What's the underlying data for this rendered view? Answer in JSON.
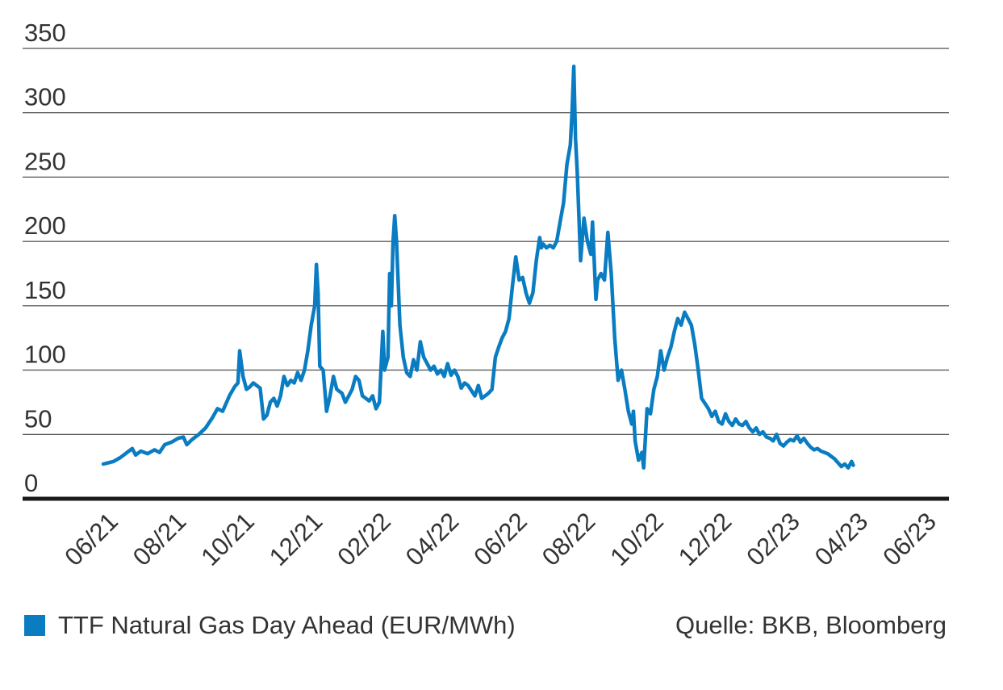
{
  "chart_data": {
    "type": "line",
    "title": "",
    "xlabel": "",
    "ylabel": "",
    "ylim": [
      0,
      350
    ],
    "yticks": [
      0,
      50,
      100,
      150,
      200,
      250,
      300,
      350
    ],
    "grid": true,
    "x_tick_labels": [
      "06/21",
      "08/21",
      "10/21",
      "12/21",
      "02/22",
      "04/22",
      "06/22",
      "08/22",
      "10/22",
      "12/22",
      "02/23",
      "04/23",
      "06/23"
    ],
    "x_unit": "months since 06/21",
    "color": "#0a7cc1",
    "series": [
      {
        "name": "TTF Natural Gas Day Ahead (EUR/MWh)",
        "points": [
          [
            0.0,
            27
          ],
          [
            0.15,
            28
          ],
          [
            0.3,
            29
          ],
          [
            0.5,
            32
          ],
          [
            0.7,
            36
          ],
          [
            0.85,
            39
          ],
          [
            0.95,
            34
          ],
          [
            1.1,
            37
          ],
          [
            1.3,
            35
          ],
          [
            1.5,
            38
          ],
          [
            1.65,
            36
          ],
          [
            1.8,
            42
          ],
          [
            2.0,
            44
          ],
          [
            2.2,
            47
          ],
          [
            2.35,
            48
          ],
          [
            2.45,
            42
          ],
          [
            2.6,
            46
          ],
          [
            2.8,
            50
          ],
          [
            3.0,
            55
          ],
          [
            3.2,
            63
          ],
          [
            3.35,
            70
          ],
          [
            3.5,
            68
          ],
          [
            3.7,
            80
          ],
          [
            3.85,
            87
          ],
          [
            3.95,
            90
          ],
          [
            4.0,
            115
          ],
          [
            4.1,
            95
          ],
          [
            4.2,
            85
          ],
          [
            4.3,
            87
          ],
          [
            4.4,
            90
          ],
          [
            4.5,
            88
          ],
          [
            4.6,
            86
          ],
          [
            4.7,
            62
          ],
          [
            4.8,
            65
          ],
          [
            4.9,
            75
          ],
          [
            5.0,
            78
          ],
          [
            5.1,
            72
          ],
          [
            5.2,
            80
          ],
          [
            5.3,
            95
          ],
          [
            5.4,
            88
          ],
          [
            5.5,
            92
          ],
          [
            5.6,
            90
          ],
          [
            5.7,
            98
          ],
          [
            5.8,
            92
          ],
          [
            5.9,
            100
          ],
          [
            6.0,
            115
          ],
          [
            6.1,
            135
          ],
          [
            6.2,
            150
          ],
          [
            6.25,
            182
          ],
          [
            6.3,
            160
          ],
          [
            6.35,
            103
          ],
          [
            6.45,
            100
          ],
          [
            6.55,
            68
          ],
          [
            6.65,
            80
          ],
          [
            6.75,
            95
          ],
          [
            6.85,
            85
          ],
          [
            7.0,
            82
          ],
          [
            7.1,
            75
          ],
          [
            7.2,
            80
          ],
          [
            7.3,
            85
          ],
          [
            7.4,
            95
          ],
          [
            7.5,
            92
          ],
          [
            7.6,
            80
          ],
          [
            7.7,
            78
          ],
          [
            7.8,
            76
          ],
          [
            7.9,
            80
          ],
          [
            8.0,
            70
          ],
          [
            8.1,
            75
          ],
          [
            8.2,
            130
          ],
          [
            8.25,
            100
          ],
          [
            8.35,
            110
          ],
          [
            8.4,
            175
          ],
          [
            8.45,
            150
          ],
          [
            8.5,
            200
          ],
          [
            8.55,
            220
          ],
          [
            8.6,
            200
          ],
          [
            8.7,
            135
          ],
          [
            8.8,
            110
          ],
          [
            8.9,
            98
          ],
          [
            9.0,
            95
          ],
          [
            9.1,
            108
          ],
          [
            9.2,
            100
          ],
          [
            9.3,
            122
          ],
          [
            9.4,
            110
          ],
          [
            9.5,
            105
          ],
          [
            9.6,
            100
          ],
          [
            9.7,
            103
          ],
          [
            9.8,
            97
          ],
          [
            9.9,
            100
          ],
          [
            10.0,
            95
          ],
          [
            10.1,
            105
          ],
          [
            10.2,
            96
          ],
          [
            10.3,
            100
          ],
          [
            10.4,
            95
          ],
          [
            10.5,
            86
          ],
          [
            10.6,
            90
          ],
          [
            10.7,
            88
          ],
          [
            10.8,
            84
          ],
          [
            10.9,
            80
          ],
          [
            11.0,
            88
          ],
          [
            11.1,
            78
          ],
          [
            11.2,
            80
          ],
          [
            11.3,
            82
          ],
          [
            11.4,
            85
          ],
          [
            11.5,
            110
          ],
          [
            11.6,
            118
          ],
          [
            11.7,
            125
          ],
          [
            11.8,
            130
          ],
          [
            11.9,
            140
          ],
          [
            12.0,
            165
          ],
          [
            12.1,
            188
          ],
          [
            12.2,
            170
          ],
          [
            12.3,
            172
          ],
          [
            12.4,
            160
          ],
          [
            12.5,
            152
          ],
          [
            12.6,
            160
          ],
          [
            12.7,
            185
          ],
          [
            12.8,
            203
          ],
          [
            12.85,
            195
          ],
          [
            12.9,
            198
          ],
          [
            13.0,
            195
          ],
          [
            13.1,
            197
          ],
          [
            13.2,
            195
          ],
          [
            13.3,
            200
          ],
          [
            13.4,
            215
          ],
          [
            13.5,
            230
          ],
          [
            13.6,
            260
          ],
          [
            13.7,
            275
          ],
          [
            13.75,
            300
          ],
          [
            13.8,
            336
          ],
          [
            13.85,
            280
          ],
          [
            13.9,
            255
          ],
          [
            14.0,
            185
          ],
          [
            14.1,
            218
          ],
          [
            14.2,
            200
          ],
          [
            14.3,
            190
          ],
          [
            14.35,
            215
          ],
          [
            14.45,
            155
          ],
          [
            14.5,
            170
          ],
          [
            14.6,
            175
          ],
          [
            14.7,
            170
          ],
          [
            14.8,
            207
          ],
          [
            14.9,
            175
          ],
          [
            15.0,
            125
          ],
          [
            15.1,
            92
          ],
          [
            15.2,
            100
          ],
          [
            15.3,
            85
          ],
          [
            15.4,
            68
          ],
          [
            15.5,
            58
          ],
          [
            15.55,
            68
          ],
          [
            15.6,
            45
          ],
          [
            15.7,
            30
          ],
          [
            15.8,
            36
          ],
          [
            15.85,
            24
          ],
          [
            15.95,
            70
          ],
          [
            16.05,
            66
          ],
          [
            16.15,
            85
          ],
          [
            16.25,
            95
          ],
          [
            16.35,
            115
          ],
          [
            16.45,
            100
          ],
          [
            16.55,
            110
          ],
          [
            16.65,
            118
          ],
          [
            16.75,
            130
          ],
          [
            16.85,
            140
          ],
          [
            16.95,
            135
          ],
          [
            17.05,
            145
          ],
          [
            17.15,
            140
          ],
          [
            17.25,
            135
          ],
          [
            17.35,
            120
          ],
          [
            17.45,
            100
          ],
          [
            17.55,
            78
          ],
          [
            17.65,
            74
          ],
          [
            17.75,
            70
          ],
          [
            17.85,
            64
          ],
          [
            17.95,
            68
          ],
          [
            18.05,
            60
          ],
          [
            18.15,
            58
          ],
          [
            18.25,
            66
          ],
          [
            18.35,
            60
          ],
          [
            18.45,
            57
          ],
          [
            18.55,
            62
          ],
          [
            18.65,
            58
          ],
          [
            18.75,
            57
          ],
          [
            18.85,
            60
          ],
          [
            18.95,
            55
          ],
          [
            19.05,
            52
          ],
          [
            19.15,
            55
          ],
          [
            19.25,
            50
          ],
          [
            19.35,
            52
          ],
          [
            19.45,
            48
          ],
          [
            19.55,
            47
          ],
          [
            19.65,
            45
          ],
          [
            19.75,
            50
          ],
          [
            19.85,
            43
          ],
          [
            19.95,
            41
          ],
          [
            20.05,
            44
          ],
          [
            20.15,
            46
          ],
          [
            20.25,
            45
          ],
          [
            20.35,
            49
          ],
          [
            20.45,
            44
          ],
          [
            20.55,
            47
          ],
          [
            20.65,
            43
          ],
          [
            20.75,
            40
          ],
          [
            20.85,
            38
          ],
          [
            20.95,
            39
          ],
          [
            21.05,
            37
          ],
          [
            21.15,
            36
          ],
          [
            21.25,
            35
          ],
          [
            21.35,
            33
          ],
          [
            21.45,
            31
          ],
          [
            21.55,
            28
          ],
          [
            21.65,
            25
          ],
          [
            21.75,
            27
          ],
          [
            21.85,
            24
          ],
          [
            21.95,
            29
          ],
          [
            22.0,
            26
          ]
        ]
      }
    ],
    "legend": {
      "position": "bottom-left"
    },
    "source": "Quelle: BKB, Bloomberg"
  }
}
